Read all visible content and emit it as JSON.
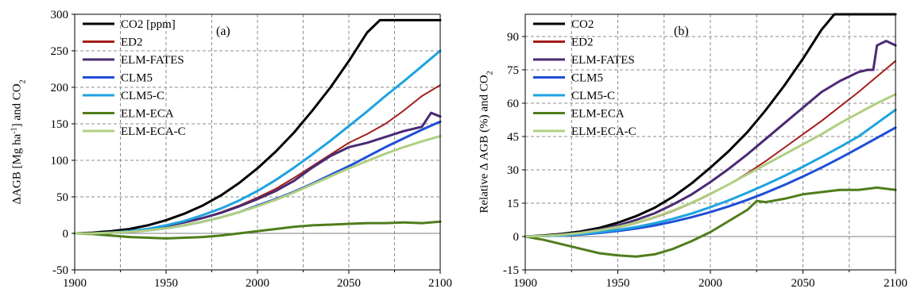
{
  "chart_data": [
    {
      "type": "line",
      "panel_label": "(a)",
      "ylabel_main": "ΔAGB [Mg ha",
      "ylabel_sup": "-1",
      "ylabel_mid": "] and CO",
      "ylabel_sub": "2",
      "xlim": [
        1900,
        2100
      ],
      "ylim": [
        -50,
        300
      ],
      "x_ticks": [
        1900,
        1950,
        2000,
        2050,
        2100
      ],
      "y_ticks": [
        -50,
        0,
        50,
        100,
        150,
        200,
        250,
        300
      ],
      "x_tick_labels": [
        "1900",
        "1950",
        "2000",
        "2050",
        "2100"
      ],
      "y_tick_labels": [
        "-50",
        "0",
        "50",
        "100",
        "150",
        "200",
        "250",
        "300"
      ],
      "grid": true,
      "legend_position": "top-left",
      "series": [
        {
          "name": "CO2 [ppm]",
          "color": "#000000",
          "width": 3,
          "x": [
            1900,
            1910,
            1920,
            1930,
            1940,
            1950,
            1960,
            1970,
            1980,
            1990,
            2000,
            2010,
            2020,
            2030,
            2040,
            2050,
            2060,
            2067,
            2070,
            2080,
            2090,
            2100
          ],
          "y": [
            0,
            1,
            3,
            6,
            11,
            18,
            27,
            38,
            52,
            69,
            89,
            112,
            138,
            168,
            200,
            236,
            275,
            292,
            292,
            292,
            292,
            292
          ]
        },
        {
          "name": "ED2",
          "color": "#a31f1a",
          "width": 2,
          "x": [
            1900,
            1910,
            1920,
            1930,
            1940,
            1950,
            1960,
            1970,
            1980,
            1990,
            2000,
            2010,
            2020,
            2030,
            2040,
            2050,
            2060,
            2070,
            2080,
            2090,
            2100
          ],
          "y": [
            0,
            0,
            1,
            3,
            6,
            10,
            15,
            21,
            29,
            38,
            49,
            61,
            76,
            92,
            108,
            124,
            136,
            150,
            168,
            188,
            203
          ]
        },
        {
          "name": "ELM-FATES",
          "color": "#4a2a73",
          "width": 3,
          "x": [
            1900,
            1910,
            1920,
            1930,
            1940,
            1950,
            1960,
            1970,
            1980,
            1990,
            2000,
            2010,
            2020,
            2030,
            2040,
            2050,
            2060,
            2070,
            2080,
            2085,
            2090,
            2095,
            2100
          ],
          "y": [
            0,
            0,
            1,
            3,
            6,
            10,
            15,
            21,
            28,
            37,
            47,
            58,
            72,
            90,
            106,
            118,
            124,
            132,
            140,
            143,
            146,
            165,
            160
          ]
        },
        {
          "name": "CLM5",
          "color": "#1f4fd6",
          "width": 3,
          "x": [
            1900,
            1910,
            1920,
            1930,
            1940,
            1950,
            1960,
            1970,
            1980,
            1990,
            2000,
            2010,
            2020,
            2030,
            2040,
            2050,
            2060,
            2070,
            2080,
            2090,
            2100
          ],
          "y": [
            0,
            0,
            1,
            2,
            4,
            7,
            11,
            16,
            22,
            29,
            38,
            47,
            57,
            68,
            80,
            92,
            105,
            118,
            130,
            142,
            153
          ]
        },
        {
          "name": "CLM5-C",
          "color": "#1ea3e0",
          "width": 3,
          "x": [
            1900,
            1910,
            1920,
            1930,
            1940,
            1950,
            1960,
            1970,
            1980,
            1990,
            2000,
            2010,
            2020,
            2030,
            2040,
            2050,
            2060,
            2070,
            2080,
            2090,
            2100
          ],
          "y": [
            0,
            0,
            1,
            3,
            6,
            11,
            17,
            25,
            34,
            45,
            58,
            73,
            90,
            108,
            127,
            147,
            167,
            188,
            208,
            229,
            250
          ]
        },
        {
          "name": "ELM-ECA",
          "color": "#4f7d1c",
          "width": 3,
          "x": [
            1900,
            1910,
            1920,
            1930,
            1940,
            1950,
            1960,
            1970,
            1980,
            1990,
            2000,
            2010,
            2020,
            2030,
            2040,
            2050,
            2060,
            2070,
            2080,
            2090,
            2100
          ],
          "y": [
            0,
            -1,
            -3,
            -5,
            -6,
            -7,
            -6,
            -5,
            -3,
            0,
            3,
            6,
            9,
            11,
            12,
            13,
            14,
            14,
            15,
            14,
            16
          ]
        },
        {
          "name": "ELM-ECA-C",
          "color": "#b0cf82",
          "width": 3,
          "x": [
            1900,
            1910,
            1920,
            1930,
            1940,
            1950,
            1960,
            1970,
            1980,
            1990,
            2000,
            2010,
            2020,
            2030,
            2040,
            2050,
            2060,
            2070,
            2080,
            2090,
            2100
          ],
          "y": [
            0,
            0,
            1,
            2,
            4,
            7,
            11,
            16,
            22,
            29,
            37,
            46,
            56,
            67,
            78,
            89,
            99,
            109,
            118,
            126,
            133
          ]
        }
      ]
    },
    {
      "type": "line",
      "panel_label": "(b)",
      "ylabel_main": "Relative Δ AGB (%) and CO",
      "ylabel_sub": "2",
      "xlim": [
        1900,
        2100
      ],
      "ylim": [
        -15,
        100
      ],
      "x_ticks": [
        1900,
        1950,
        2000,
        2050,
        2100
      ],
      "y_ticks": [
        -15,
        0,
        15,
        30,
        45,
        60,
        75,
        90
      ],
      "x_tick_labels": [
        "1900",
        "1950",
        "2000",
        "2050",
        "2100"
      ],
      "y_tick_labels": [
        "-15",
        "0",
        "15",
        "30",
        "45",
        "60",
        "75",
        "90"
      ],
      "grid": true,
      "legend_position": "top-left",
      "series": [
        {
          "name": "CO2",
          "color": "#000000",
          "width": 3,
          "x": [
            1900,
            1910,
            1920,
            1930,
            1940,
            1950,
            1960,
            1970,
            1980,
            1990,
            2000,
            2010,
            2020,
            2030,
            2040,
            2050,
            2060,
            2067,
            2070,
            2080,
            2090,
            2100
          ],
          "y": [
            0,
            0.5,
            1.2,
            2.3,
            3.9,
            6.2,
            9.2,
            13,
            18,
            24,
            31,
            38.5,
            47,
            57,
            68,
            80,
            93,
            100,
            100,
            100,
            100,
            100
          ]
        },
        {
          "name": "ED2",
          "color": "#a31f1a",
          "width": 2,
          "x": [
            1900,
            1910,
            1920,
            1930,
            1940,
            1950,
            1960,
            1970,
            1980,
            1990,
            2000,
            2010,
            2020,
            2030,
            2040,
            2050,
            2060,
            2070,
            2080,
            2090,
            2100
          ],
          "y": [
            0,
            0.3,
            0.8,
            1.5,
            2.6,
            4,
            6,
            8.5,
            11.5,
            15,
            19,
            23.5,
            28.5,
            34,
            40,
            46,
            52,
            58.5,
            65,
            72,
            79
          ]
        },
        {
          "name": "ELM-FATES",
          "color": "#4a2a73",
          "width": 3,
          "x": [
            1900,
            1910,
            1920,
            1930,
            1940,
            1950,
            1960,
            1970,
            1980,
            1990,
            2000,
            2010,
            2020,
            2030,
            2040,
            2050,
            2060,
            2070,
            2080,
            2085,
            2088,
            2090,
            2095,
            2100
          ],
          "y": [
            0,
            0.3,
            0.9,
            1.8,
            3.1,
            5,
            7.5,
            10.5,
            14.5,
            19,
            24.5,
            30.5,
            37,
            44,
            51,
            58,
            65,
            70,
            74,
            75,
            75,
            86,
            88,
            86
          ]
        },
        {
          "name": "CLM5",
          "color": "#1f4fd6",
          "width": 3,
          "x": [
            1900,
            1910,
            1920,
            1930,
            1940,
            1950,
            1960,
            1970,
            1980,
            1990,
            2000,
            2010,
            2020,
            2030,
            2040,
            2050,
            2060,
            2070,
            2080,
            2090,
            2100
          ],
          "y": [
            0,
            0.2,
            0.5,
            0.9,
            1.6,
            2.5,
            3.6,
            5,
            6.7,
            8.7,
            11,
            13.6,
            16.5,
            19.7,
            23.2,
            27,
            31,
            35.3,
            39.8,
            44.4,
            49
          ]
        },
        {
          "name": "CLM5-C",
          "color": "#1ea3e0",
          "width": 3,
          "x": [
            1900,
            1910,
            1920,
            1930,
            1940,
            1950,
            1960,
            1970,
            1980,
            1990,
            2000,
            2010,
            2020,
            2030,
            2040,
            2050,
            2060,
            2070,
            2080,
            2090,
            2100
          ],
          "y": [
            0,
            0.2,
            0.5,
            1.1,
            1.9,
            3,
            4.3,
            6,
            8,
            10.4,
            13.2,
            16.3,
            19.7,
            23.4,
            27.3,
            31.4,
            35.8,
            40.3,
            45,
            51,
            57
          ]
        },
        {
          "name": "ELM-ECA",
          "color": "#4f7d1c",
          "width": 3,
          "x": [
            1900,
            1910,
            1920,
            1930,
            1940,
            1950,
            1960,
            1970,
            1980,
            1990,
            2000,
            2010,
            2020,
            2025,
            2030,
            2040,
            2050,
            2060,
            2070,
            2080,
            2090,
            2100
          ],
          "y": [
            0,
            -1.5,
            -3.5,
            -5.5,
            -7.5,
            -8.5,
            -9,
            -8,
            -5.5,
            -2,
            2,
            7,
            12,
            16,
            15.5,
            17,
            19,
            20,
            21,
            21,
            22,
            21
          ]
        },
        {
          "name": "ELM-ECA-C",
          "color": "#b0cf82",
          "width": 3,
          "x": [
            1900,
            1910,
            1920,
            1930,
            1940,
            1950,
            1960,
            1970,
            1980,
            1990,
            2000,
            2010,
            2020,
            2030,
            2040,
            2050,
            2060,
            2070,
            2080,
            2090,
            2100
          ],
          "y": [
            0,
            0.3,
            0.8,
            1.6,
            2.8,
            4.3,
            6.3,
            8.8,
            11.8,
            15.2,
            19.2,
            23.5,
            28,
            32.5,
            37,
            41.5,
            46,
            51,
            55.5,
            60,
            64
          ]
        }
      ]
    }
  ]
}
